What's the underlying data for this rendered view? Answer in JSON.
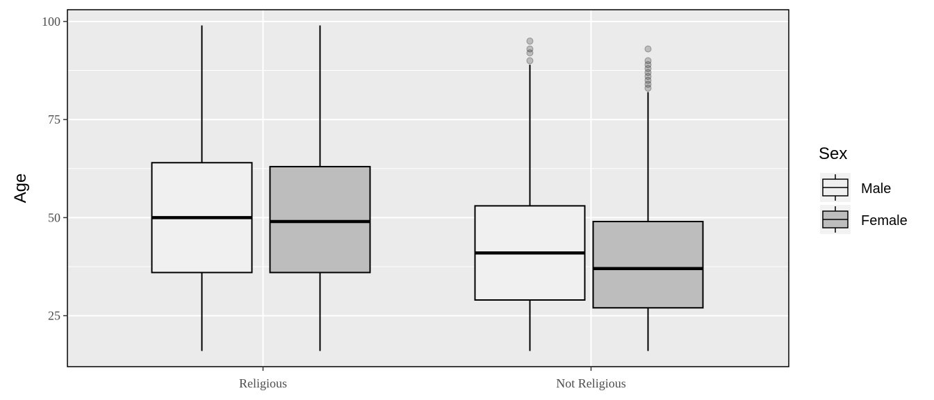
{
  "chart_data": {
    "type": "boxplot",
    "ylabel": "Age",
    "categories": [
      "Religious",
      "Not Religious"
    ],
    "yticks": [
      25,
      50,
      75,
      100
    ],
    "ylim": [
      12,
      103
    ],
    "grid": true,
    "legend": {
      "title": "Sex",
      "position": "right",
      "entries": [
        {
          "name": "Male",
          "color": "#f0f0f0"
        },
        {
          "name": "Female",
          "color": "#bdbdbd"
        }
      ]
    },
    "series": [
      {
        "name": "Male",
        "fill": "#f0f0f0",
        "boxes": [
          {
            "category": "Religious",
            "min": 16,
            "q1": 36,
            "median": 50,
            "q3": 64,
            "max": 99,
            "outliers": []
          },
          {
            "category": "Not Religious",
            "min": 16,
            "q1": 29,
            "median": 41,
            "q3": 53,
            "max": 89,
            "outliers": [
              90,
              92,
              93,
              95
            ]
          }
        ]
      },
      {
        "name": "Female",
        "fill": "#bdbdbd",
        "boxes": [
          {
            "category": "Religious",
            "min": 16,
            "q1": 36,
            "median": 49,
            "q3": 63,
            "max": 99,
            "outliers": []
          },
          {
            "category": "Not Religious",
            "min": 16,
            "q1": 27,
            "median": 37,
            "q3": 49,
            "max": 82,
            "outliers": [
              83,
              84,
              85,
              86,
              87,
              88,
              89,
              90,
              93
            ]
          }
        ]
      }
    ]
  }
}
